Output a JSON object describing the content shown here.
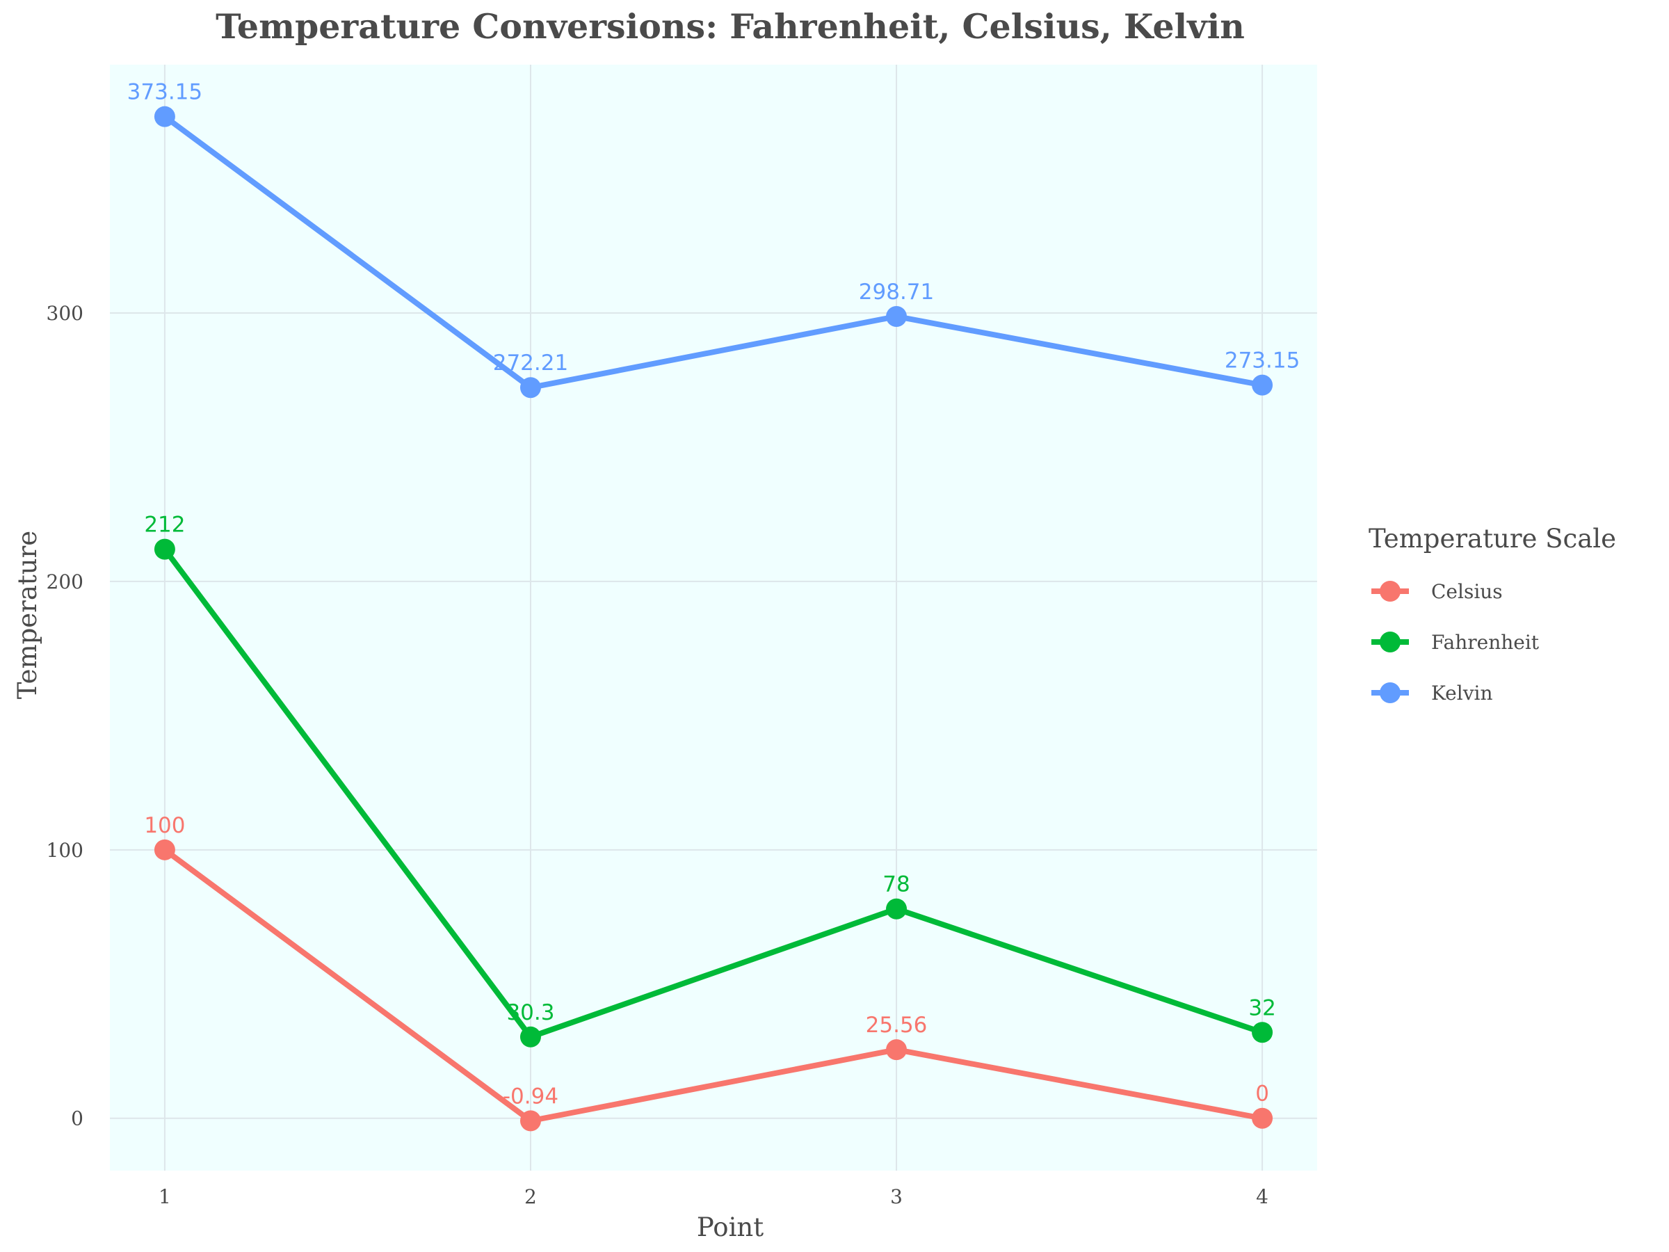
{
  "chart_data": {
    "type": "line",
    "title": "Temperature Conversions: Fahrenheit, Celsius, Kelvin",
    "xlabel": "Point",
    "ylabel": "Temperature",
    "x": [
      1,
      2,
      3,
      4
    ],
    "xlim": [
      0.85,
      4.15
    ],
    "ylim": [
      -19.5,
      392.5
    ],
    "yticks": [
      0,
      100,
      200,
      300
    ],
    "grid": true,
    "background_color": "#f0ffff",
    "legend": {
      "title": "Temperature Scale",
      "placement": "right"
    },
    "series": [
      {
        "name": "Celsius",
        "color": "#f8766d",
        "values": [
          100,
          -0.94,
          25.56,
          0
        ],
        "labels": [
          "100",
          "-0.94",
          "25.56",
          "0"
        ]
      },
      {
        "name": "Fahrenheit",
        "color": "#00ba38",
        "values": [
          212,
          30.3,
          78,
          32
        ],
        "labels": [
          "212",
          "30.3",
          "78",
          "32"
        ]
      },
      {
        "name": "Kelvin",
        "color": "#619cff",
        "values": [
          373.15,
          272.21,
          298.71,
          273.15
        ],
        "labels": [
          "373.15",
          "272.21",
          "298.71",
          "273.15"
        ]
      }
    ]
  }
}
